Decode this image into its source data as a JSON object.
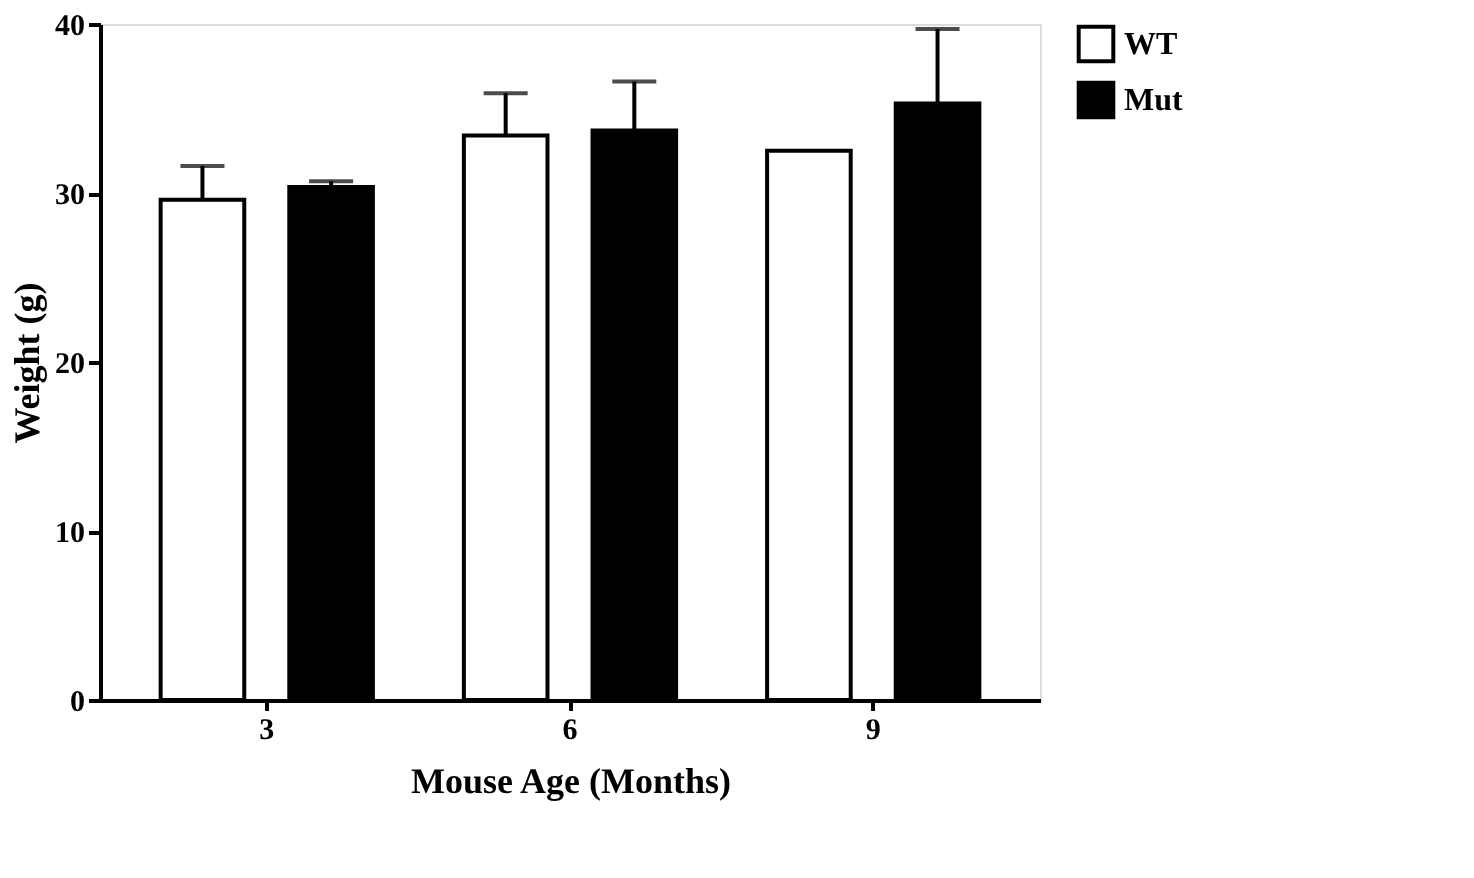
{
  "chart_data": {
    "type": "bar",
    "xlabel": "Mouse Age (Months)",
    "ylabel": "Weight (g)",
    "categories": [
      "3",
      "6",
      "9"
    ],
    "series": [
      {
        "name": "WT",
        "color": "#ffffff",
        "values": [
          29.6,
          33.4,
          32.5
        ],
        "errors": [
          [
            29.6,
            31.6
          ],
          [
            33.4,
            35.9
          ],
          null
        ]
      },
      {
        "name": "Mut",
        "color": "#000000",
        "values": [
          30.35,
          33.7,
          35.3
        ],
        "errors": [
          [
            30.35,
            30.7
          ],
          [
            33.7,
            36.6
          ],
          [
            35.3,
            39.7
          ]
        ]
      }
    ],
    "ylim": [
      0,
      40
    ],
    "yticks": [
      0,
      10,
      20,
      30,
      40
    ],
    "grid": false,
    "legend": "top right"
  }
}
